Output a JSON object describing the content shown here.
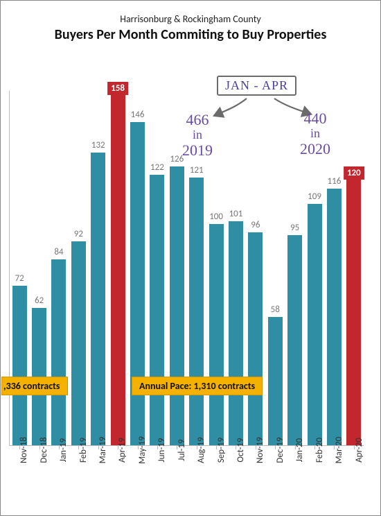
{
  "header": {
    "subtitle": "Harrisonburg & Rockingham County",
    "title": "Buyers Per Month Commiting to Buy Properties"
  },
  "chart": {
    "type": "bar",
    "y_max": 160,
    "bar_color": "#2f8ea3",
    "highlight_color": "#c1272d",
    "value_label_color": "#777777",
    "axis_color": "#bbbbbb",
    "background": "#ffffff",
    "bars": [
      {
        "label": "Nov-18",
        "value": 72,
        "highlight": false
      },
      {
        "label": "Dec-18",
        "value": 62,
        "highlight": false
      },
      {
        "label": "Jan-19",
        "value": 84,
        "highlight": false
      },
      {
        "label": "Feb-19",
        "value": 92,
        "highlight": false
      },
      {
        "label": "Mar-19",
        "value": 132,
        "highlight": false
      },
      {
        "label": "Apr-19",
        "value": 158,
        "highlight": true
      },
      {
        "label": "May-19",
        "value": 146,
        "highlight": false
      },
      {
        "label": "Jun-19",
        "value": 122,
        "highlight": false
      },
      {
        "label": "Jul-19",
        "value": 126,
        "highlight": false
      },
      {
        "label": "Aug-19",
        "value": 121,
        "highlight": false
      },
      {
        "label": "Sep-19",
        "value": 100,
        "highlight": false
      },
      {
        "label": "Oct-19",
        "value": 101,
        "highlight": false
      },
      {
        "label": "Nov-19",
        "value": 96,
        "highlight": false
      },
      {
        "label": "Dec-19",
        "value": 58,
        "highlight": false
      },
      {
        "label": "Jan-20",
        "value": 95,
        "highlight": false
      },
      {
        "label": "Feb-20",
        "value": 109,
        "highlight": false
      },
      {
        "label": "Mar-20",
        "value": 116,
        "highlight": false
      },
      {
        "label": "Apr-20",
        "value": 120,
        "highlight": true
      }
    ]
  },
  "annotations": {
    "box_label": "JAN - APR",
    "left": {
      "value": "466",
      "mid": "in",
      "year": "2019"
    },
    "right": {
      "value": "440",
      "mid": "in",
      "year": "2020"
    },
    "arrow_color": "#6b6b6b"
  },
  "pace_labels": {
    "left": ",336 contracts",
    "right": "Annual Pace: 1,310 contracts",
    "bg": "#f5b100"
  }
}
